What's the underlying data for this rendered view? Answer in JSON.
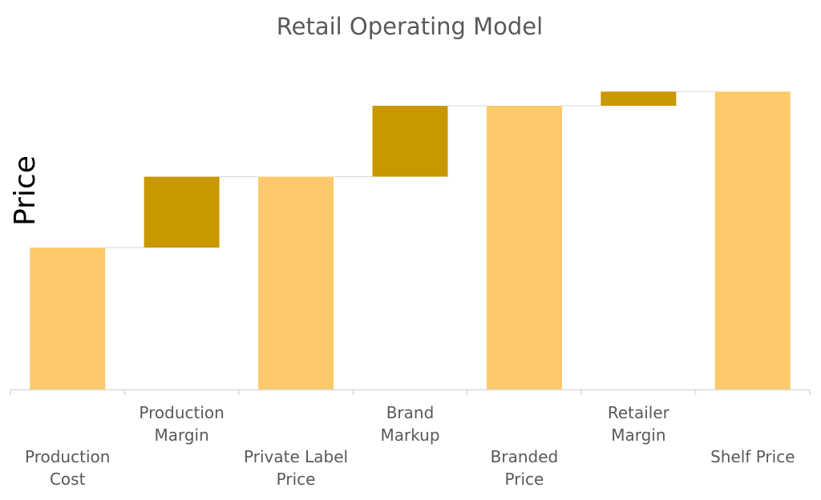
{
  "chart_data": {
    "type": "bar",
    "subtype": "waterfall",
    "title": "Retail Operating Model",
    "xlabel": "",
    "ylabel": "Price",
    "ylim": [
      0,
      105
    ],
    "grid": false,
    "legend": "none",
    "categories": [
      [
        "Production",
        "Cost"
      ],
      [
        "Production",
        "Margin"
      ],
      [
        "Private Label",
        "Price"
      ],
      [
        "Brand",
        "Markup"
      ],
      [
        "Branded",
        "Price"
      ],
      [
        "Retailer",
        "Margin"
      ],
      [
        "Shelf Price"
      ]
    ],
    "bars": [
      {
        "kind": "total",
        "start": 0,
        "end": 50
      },
      {
        "kind": "delta",
        "start": 50,
        "end": 75
      },
      {
        "kind": "total",
        "start": 0,
        "end": 75
      },
      {
        "kind": "delta",
        "start": 75,
        "end": 100
      },
      {
        "kind": "total",
        "start": 0,
        "end": 100
      },
      {
        "kind": "delta",
        "start": 100,
        "end": 105
      },
      {
        "kind": "total",
        "start": 0,
        "end": 105
      }
    ],
    "colors": {
      "total": "#FEC96B",
      "delta": "#C99700",
      "axis": "#D9D9D9",
      "connector": "#D9D9D9",
      "title": "#595959",
      "label": "#595959"
    }
  }
}
